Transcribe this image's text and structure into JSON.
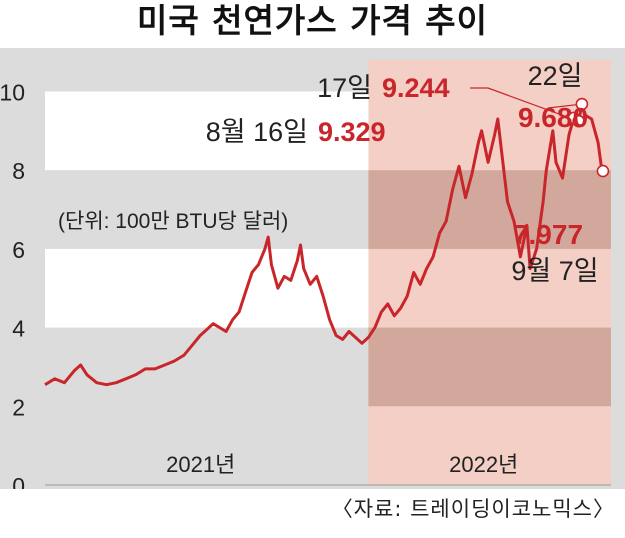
{
  "chart_data": {
    "type": "line",
    "title": "미국 천연가스 가격 추이",
    "unit_note": "(단위: 100만 BTU당 달러)",
    "source": "〈자료: 트레이딩이코노믹스〉",
    "x_labels": [
      "2021년",
      "2022년"
    ],
    "y_ticks": [
      "0",
      "2",
      "4",
      "6",
      "8",
      "10"
    ],
    "ylim": [
      0,
      10.8
    ],
    "xlim": [
      2021.0,
      2022.75
    ],
    "highlight_start": 2022.0,
    "series": [
      {
        "color": "#c8262a",
        "points": [
          [
            2021.0,
            2.55
          ],
          [
            2021.03,
            2.7
          ],
          [
            2021.06,
            2.6
          ],
          [
            2021.09,
            2.9
          ],
          [
            2021.11,
            3.05
          ],
          [
            2021.13,
            2.8
          ],
          [
            2021.16,
            2.6
          ],
          [
            2021.19,
            2.55
          ],
          [
            2021.22,
            2.6
          ],
          [
            2021.25,
            2.7
          ],
          [
            2021.28,
            2.8
          ],
          [
            2021.31,
            2.95
          ],
          [
            2021.34,
            2.95
          ],
          [
            2021.37,
            3.05
          ],
          [
            2021.4,
            3.15
          ],
          [
            2021.43,
            3.3
          ],
          [
            2021.46,
            3.6
          ],
          [
            2021.48,
            3.8
          ],
          [
            2021.5,
            3.95
          ],
          [
            2021.52,
            4.1
          ],
          [
            2021.54,
            4.0
          ],
          [
            2021.56,
            3.9
          ],
          [
            2021.58,
            4.2
          ],
          [
            2021.6,
            4.4
          ],
          [
            2021.62,
            4.9
          ],
          [
            2021.64,
            5.4
          ],
          [
            2021.66,
            5.6
          ],
          [
            2021.68,
            6.0
          ],
          [
            2021.69,
            6.3
          ],
          [
            2021.7,
            5.6
          ],
          [
            2021.72,
            5.0
          ],
          [
            2021.74,
            5.3
          ],
          [
            2021.76,
            5.2
          ],
          [
            2021.78,
            5.7
          ],
          [
            2021.79,
            6.1
          ],
          [
            2021.8,
            5.5
          ],
          [
            2021.82,
            5.1
          ],
          [
            2021.84,
            5.3
          ],
          [
            2021.86,
            4.8
          ],
          [
            2021.88,
            4.2
          ],
          [
            2021.9,
            3.8
          ],
          [
            2021.92,
            3.7
          ],
          [
            2021.94,
            3.9
          ],
          [
            2021.96,
            3.75
          ],
          [
            2021.98,
            3.6
          ],
          [
            2022.0,
            3.75
          ],
          [
            2022.02,
            4.0
          ],
          [
            2022.04,
            4.4
          ],
          [
            2022.06,
            4.6
          ],
          [
            2022.08,
            4.3
          ],
          [
            2022.1,
            4.5
          ],
          [
            2022.12,
            4.8
          ],
          [
            2022.14,
            5.4
          ],
          [
            2022.16,
            5.1
          ],
          [
            2022.18,
            5.5
          ],
          [
            2022.2,
            5.8
          ],
          [
            2022.22,
            6.4
          ],
          [
            2022.24,
            6.7
          ],
          [
            2022.26,
            7.5
          ],
          [
            2022.28,
            8.1
          ],
          [
            2022.3,
            7.3
          ],
          [
            2022.32,
            7.9
          ],
          [
            2022.34,
            8.7
          ],
          [
            2022.35,
            9.0
          ],
          [
            2022.37,
            8.2
          ],
          [
            2022.39,
            8.9
          ],
          [
            2022.4,
            9.3
          ],
          [
            2022.41,
            8.6
          ],
          [
            2022.43,
            7.2
          ],
          [
            2022.45,
            6.7
          ],
          [
            2022.47,
            5.8
          ],
          [
            2022.49,
            6.6
          ],
          [
            2022.5,
            5.5
          ],
          [
            2022.52,
            6.0
          ],
          [
            2022.54,
            7.2
          ],
          [
            2022.55,
            8.0
          ],
          [
            2022.57,
            9.0
          ],
          [
            2022.58,
            8.2
          ],
          [
            2022.6,
            7.8
          ],
          [
            2022.62,
            8.9
          ],
          [
            2022.635,
            9.329
          ],
          [
            2022.65,
            9.244
          ],
          [
            2022.66,
            9.68
          ],
          [
            2022.67,
            9.4
          ],
          [
            2022.69,
            9.3
          ],
          [
            2022.71,
            8.7
          ],
          [
            2022.72,
            8.1
          ],
          [
            2022.725,
            7.977
          ]
        ]
      }
    ],
    "annotations": [
      {
        "date_label": "8월 16일",
        "value_label": "9.329",
        "x": 2022.635,
        "y": 9.329
      },
      {
        "date_label": "17일",
        "value_label": "9.244",
        "x": 2022.65,
        "y": 9.244
      },
      {
        "date_label": "22일",
        "value_label": "9.680",
        "x": 2022.66,
        "y": 9.68
      },
      {
        "date_label": "9월 7일",
        "value_label": "7.977",
        "x": 2022.725,
        "y": 7.977
      }
    ],
    "colors": {
      "band_gray": "#dcdcdc",
      "highlight_light": "#f3cfc5",
      "highlight_dark": "#d2a89d",
      "line": "#c8262a",
      "accent_text": "#c8262a"
    }
  }
}
